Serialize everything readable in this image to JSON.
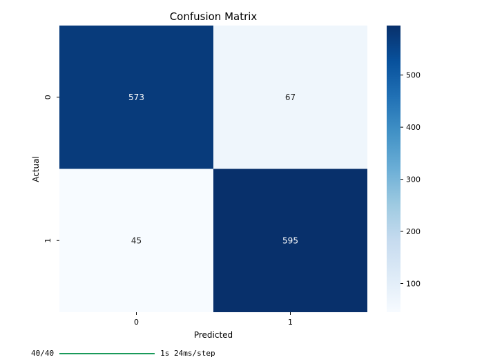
{
  "chart_data": {
    "type": "heatmap",
    "title": "Confusion Matrix",
    "xlabel": "Predicted",
    "ylabel": "Actual",
    "x_categories": [
      "0",
      "1"
    ],
    "y_categories": [
      "0",
      "1"
    ],
    "values": [
      [
        573,
        67
      ],
      [
        45,
        595
      ]
    ],
    "colormap": "Blues",
    "colorbar": {
      "range": [
        45,
        595
      ],
      "ticks": [
        100,
        200,
        300,
        400,
        500
      ]
    }
  },
  "progress": {
    "counter": "40/40",
    "fraction": 1.0,
    "timing": "1s 24ms/step",
    "color": "#1a9a5a"
  }
}
